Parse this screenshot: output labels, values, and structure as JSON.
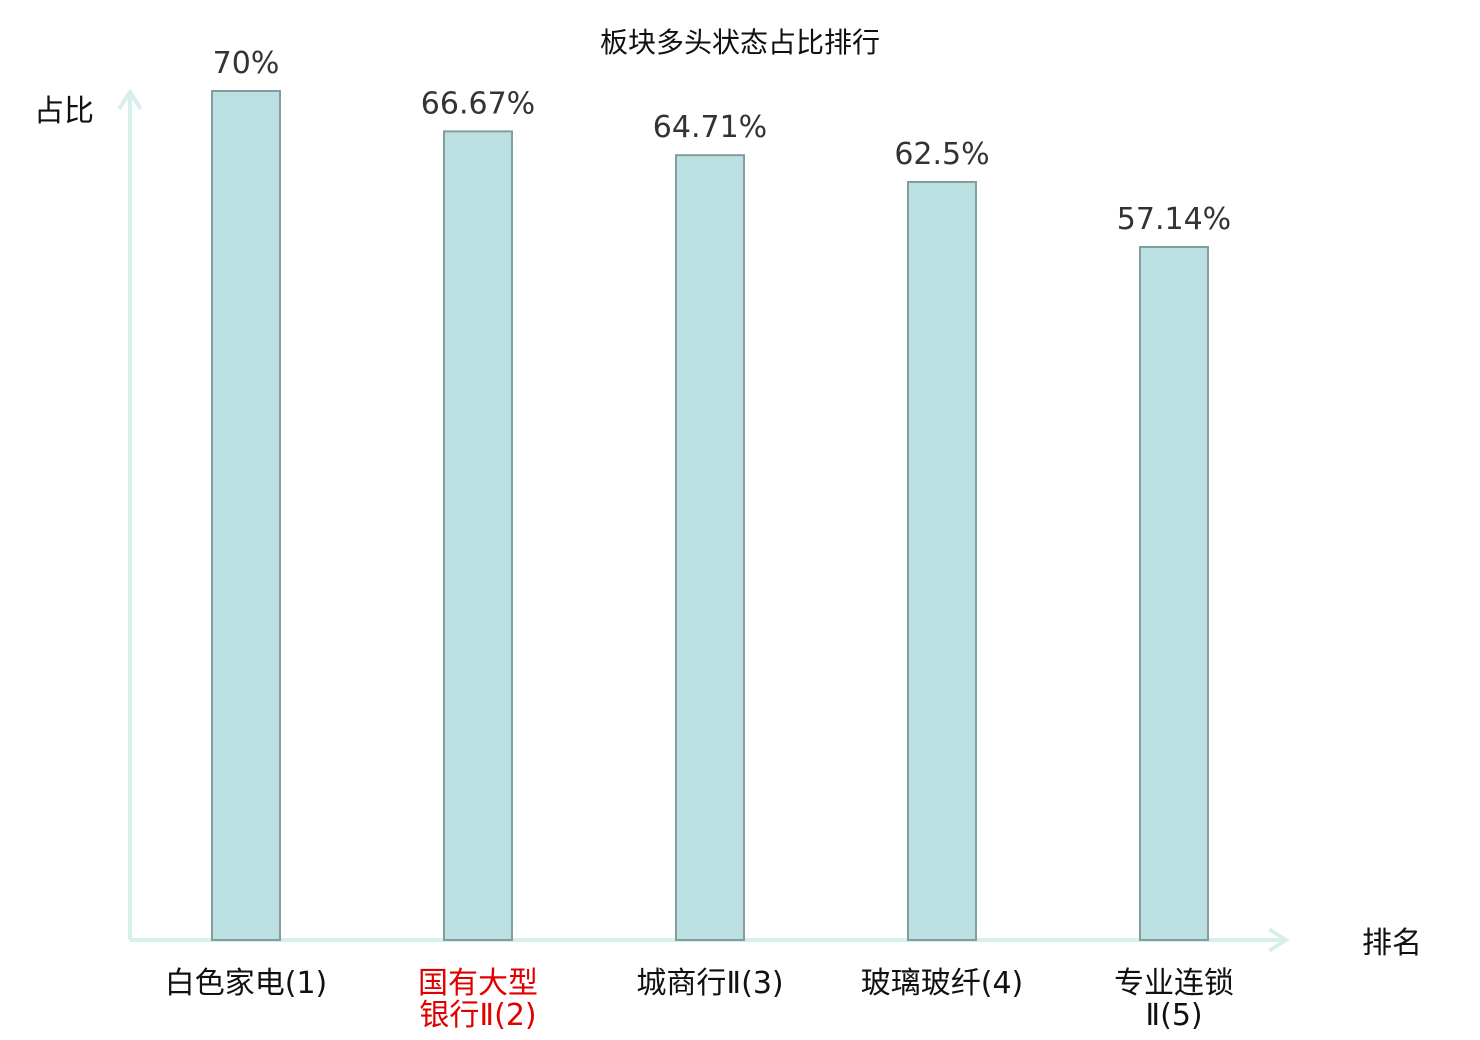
{
  "chart_data": {
    "type": "bar",
    "title": "板块多头状态占比排行",
    "xlabel": "排名",
    "ylabel": "占比",
    "categories": [
      [
        "白色家电(1)"
      ],
      [
        "国有大型",
        "银行Ⅱ(2)"
      ],
      [
        "城商行Ⅱ(3)"
      ],
      [
        "玻璃玻纤(4)"
      ],
      [
        "专业连锁",
        "Ⅱ(5)"
      ]
    ],
    "values": [
      70,
      66.67,
      64.71,
      62.5,
      57.14
    ],
    "value_labels": [
      "70%",
      "66.67%",
      "64.71%",
      "62.5%",
      "57.14%"
    ],
    "highlight_index": 1,
    "ylim": [
      0,
      70
    ],
    "grid": false,
    "legend": "none",
    "colors": {
      "bar_fill": "#bce0e1",
      "bar_stroke": "#7f9e9f",
      "axis": "#d8f0ec",
      "highlight_text": "#e00000",
      "text": "#111111"
    }
  }
}
